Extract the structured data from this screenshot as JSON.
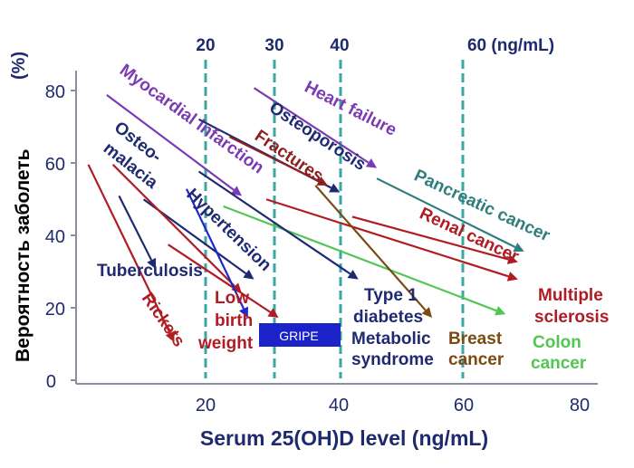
{
  "chart_data": {
    "type": "line",
    "title": "",
    "xlabel": "Serum 25(OH)D level (ng/mL)",
    "ylabel": "Вероятность заболеть",
    "ylabel_unit": "(%)",
    "xlim": [
      3,
      88
    ],
    "ylim": [
      -2,
      88
    ],
    "x_ticks": [
      "20",
      "40",
      "60",
      "80"
    ],
    "y_ticks": [
      "0",
      "20",
      "40",
      "60",
      "80"
    ],
    "thresholds": [
      {
        "x": 20,
        "label": "20"
      },
      {
        "x": 30,
        "label": "30"
      },
      {
        "x": 40,
        "label": "40"
      },
      {
        "x": 60,
        "label": "60 (ng/mL)"
      }
    ],
    "series": [
      {
        "name": "Myocardial infarction",
        "color": "#7b3bb3",
        "x": [
          8,
          30
        ],
        "y": [
          81,
          52
        ]
      },
      {
        "name": "Heart failure",
        "color": "#7b3bb3",
        "x": [
          32,
          52
        ],
        "y": [
          83,
          60
        ]
      },
      {
        "name": "Osteoporosis",
        "color": "#1f2a72",
        "x": [
          23,
          46
        ],
        "y": [
          74,
          53
        ]
      },
      {
        "name": "Fractures",
        "color": "#8f1f1f",
        "x": [
          28,
          44
        ],
        "y": [
          69,
          55
        ]
      },
      {
        "name": "Pancreatic cancer",
        "color": "#2f7d7d",
        "x": [
          52,
          76
        ],
        "y": [
          57,
          36
        ]
      },
      {
        "name": "Renal cancer",
        "color": "#b01c24",
        "x": [
          48,
          75
        ],
        "y": [
          46,
          33
        ]
      },
      {
        "name": "Multiple sclerosis",
        "color": "#b01c24",
        "x": [
          34,
          75
        ],
        "y": [
          51,
          28
        ]
      },
      {
        "name": "Colon cancer",
        "color": "#52c653",
        "x": [
          27,
          73
        ],
        "y": [
          49,
          18
        ]
      },
      {
        "name": "Breast cancer",
        "color": "#7a4a12",
        "x": [
          42,
          61
        ],
        "y": [
          55,
          17
        ]
      },
      {
        "name": "Type 1 diabetes Metabolic syndrome",
        "color": "#1f2a72",
        "x": [
          23,
          49
        ],
        "y": [
          59,
          28
        ]
      },
      {
        "name": "Hypertension",
        "color": "#1f2a72",
        "x": [
          14,
          32
        ],
        "y": [
          51,
          28
        ]
      },
      {
        "name": "Tuberculosis",
        "color": "#1f2a72",
        "x": [
          10,
          16
        ],
        "y": [
          52,
          31
        ]
      },
      {
        "name": "Rickets",
        "color": "#b01c24",
        "x": [
          5,
          19
        ],
        "y": [
          61,
          10
        ]
      },
      {
        "name": "Osteomalacia",
        "color": "#b01c24",
        "x": [
          9,
          30
        ],
        "y": [
          61,
          24
        ]
      },
      {
        "name": "Low birth weight",
        "color": "#b01c24",
        "x": [
          18,
          36
        ],
        "y": [
          38,
          17
        ]
      },
      {
        "name": "GRIPE",
        "color": "#2027c9",
        "x": [
          21,
          31
        ],
        "y": [
          54,
          17
        ]
      }
    ]
  },
  "labels": {
    "myocardial": "Myocardial infarction",
    "heart_failure": "Heart failure",
    "osteoporosis": "Osteoporosis",
    "fractures": "Fractures",
    "pancreatic": "Pancreatic cancer",
    "renal": "Renal cancer",
    "ms_1": "Multiple",
    "ms_2": "sclerosis",
    "colon_1": "Colon",
    "colon_2": "cancer",
    "breast_1": "Breast",
    "breast_2": "cancer",
    "t1d_1": "Type 1",
    "t1d_2": "diabetes",
    "t1d_3": "Metabolic",
    "t1d_4": "syndrome",
    "hypertension": "Hypertension",
    "osteomalacia_1": "Osteo-",
    "osteomalacia_2": "malacia",
    "tuberculosis": "Tuberculosis",
    "rickets": "Rickets",
    "lbw_1": "Low",
    "lbw_2": "birth",
    "lbw_3": "weight",
    "gripe": "GRIPE"
  },
  "colors": {
    "axis": "#1e2a6e",
    "threshold": "#3aa7a7",
    "gripe_box": "#1a22c8"
  }
}
